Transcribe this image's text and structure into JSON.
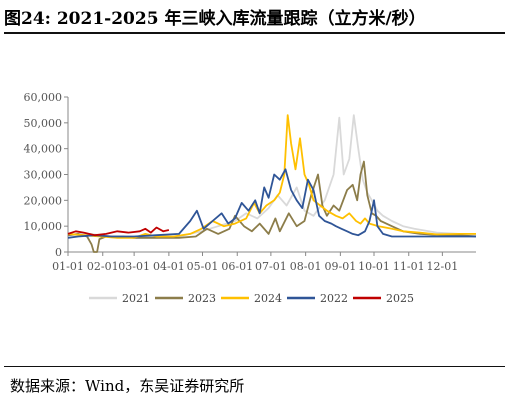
{
  "header": {
    "title": "图24:  2021-2025 年三峡入库流量跟踪（立方米/秒）"
  },
  "footer": {
    "source": "数据来源：Wind，东吴证券研究所"
  },
  "chart_data": {
    "type": "line",
    "title": "2021-2025 年三峡入库流量跟踪（立方米/秒）",
    "xlabel": "",
    "ylabel": "",
    "ylim": [
      0,
      60000
    ],
    "yticks": [
      0,
      10000,
      20000,
      30000,
      40000,
      50000,
      60000
    ],
    "ytick_labels": [
      "0",
      "10,000",
      "20,000",
      "30,000",
      "40,000",
      "50,000",
      "60,000"
    ],
    "xlim": [
      1,
      365
    ],
    "xticks": [
      1,
      32,
      60,
      91,
      121,
      152,
      182,
      213,
      244,
      274,
      305,
      335
    ],
    "xtick_labels": [
      "01-01",
      "02-01",
      "03-01",
      "04-01",
      "05-01",
      "06-01",
      "07-01",
      "08-01",
      "09-01",
      "10-01",
      "11-01",
      "12-01"
    ],
    "grid": false,
    "legend_position": "bottom",
    "series": [
      {
        "name": "2021",
        "color": "#d9d9d9",
        "points": [
          [
            1,
            6500
          ],
          [
            20,
            7000
          ],
          [
            40,
            6000
          ],
          [
            60,
            5500
          ],
          [
            80,
            5500
          ],
          [
            100,
            6000
          ],
          [
            120,
            8000
          ],
          [
            135,
            10000
          ],
          [
            150,
            12000
          ],
          [
            160,
            15000
          ],
          [
            170,
            13000
          ],
          [
            180,
            17000
          ],
          [
            188,
            22000
          ],
          [
            196,
            18000
          ],
          [
            205,
            25000
          ],
          [
            212,
            16000
          ],
          [
            220,
            14000
          ],
          [
            230,
            20000
          ],
          [
            238,
            30000
          ],
          [
            243,
            52000
          ],
          [
            247,
            30000
          ],
          [
            252,
            36000
          ],
          [
            256,
            53000
          ],
          [
            260,
            40000
          ],
          [
            264,
            28000
          ],
          [
            268,
            23000
          ],
          [
            272,
            20000
          ],
          [
            277,
            16000
          ],
          [
            282,
            14000
          ],
          [
            290,
            12000
          ],
          [
            300,
            10000
          ],
          [
            310,
            9000
          ],
          [
            330,
            7500
          ],
          [
            350,
            7000
          ],
          [
            365,
            6500
          ]
        ]
      },
      {
        "name": "2023",
        "color": "#8c7d4a",
        "points": [
          [
            1,
            6500
          ],
          [
            10,
            7000
          ],
          [
            18,
            6000
          ],
          [
            22,
            3000
          ],
          [
            24,
            0
          ],
          [
            27,
            0
          ],
          [
            29,
            5000
          ],
          [
            35,
            6000
          ],
          [
            50,
            6000
          ],
          [
            60,
            5500
          ],
          [
            80,
            5500
          ],
          [
            100,
            5500
          ],
          [
            115,
            6000
          ],
          [
            125,
            9000
          ],
          [
            135,
            7000
          ],
          [
            145,
            9000
          ],
          [
            150,
            14000
          ],
          [
            158,
            10000
          ],
          [
            165,
            8000
          ],
          [
            172,
            11000
          ],
          [
            180,
            7000
          ],
          [
            186,
            13000
          ],
          [
            190,
            8000
          ],
          [
            198,
            15000
          ],
          [
            205,
            10000
          ],
          [
            212,
            12000
          ],
          [
            218,
            22000
          ],
          [
            224,
            30000
          ],
          [
            228,
            18000
          ],
          [
            232,
            14000
          ],
          [
            238,
            18000
          ],
          [
            243,
            16000
          ],
          [
            250,
            24000
          ],
          [
            255,
            26000
          ],
          [
            259,
            20000
          ],
          [
            262,
            30000
          ],
          [
            265,
            35000
          ],
          [
            268,
            22000
          ],
          [
            272,
            15000
          ],
          [
            276,
            14000
          ],
          [
            280,
            12000
          ],
          [
            290,
            10000
          ],
          [
            300,
            8000
          ],
          [
            315,
            7000
          ],
          [
            335,
            6500
          ],
          [
            350,
            6500
          ],
          [
            365,
            6000
          ]
        ]
      },
      {
        "name": "2024",
        "color": "#ffc000",
        "points": [
          [
            1,
            7000
          ],
          [
            15,
            6500
          ],
          [
            30,
            6000
          ],
          [
            45,
            5500
          ],
          [
            60,
            5500
          ],
          [
            70,
            7000
          ],
          [
            80,
            6000
          ],
          [
            95,
            6000
          ],
          [
            110,
            7000
          ],
          [
            120,
            9000
          ],
          [
            130,
            12000
          ],
          [
            140,
            10000
          ],
          [
            150,
            11000
          ],
          [
            160,
            13000
          ],
          [
            167,
            19000
          ],
          [
            172,
            15000
          ],
          [
            178,
            18000
          ],
          [
            185,
            20000
          ],
          [
            190,
            23000
          ],
          [
            194,
            30000
          ],
          [
            197,
            53000
          ],
          [
            200,
            42000
          ],
          [
            204,
            32000
          ],
          [
            208,
            44000
          ],
          [
            212,
            30000
          ],
          [
            216,
            26000
          ],
          [
            220,
            20000
          ],
          [
            226,
            18000
          ],
          [
            232,
            16000
          ],
          [
            240,
            14000
          ],
          [
            246,
            13000
          ],
          [
            252,
            15000
          ],
          [
            258,
            12000
          ],
          [
            262,
            11000
          ],
          [
            266,
            13000
          ],
          [
            270,
            11000
          ],
          [
            278,
            10000
          ],
          [
            290,
            9000
          ],
          [
            300,
            8000
          ],
          [
            315,
            7500
          ],
          [
            330,
            6800
          ],
          [
            350,
            7000
          ],
          [
            365,
            7000
          ]
        ]
      },
      {
        "name": "2022",
        "color": "#2f5597",
        "points": [
          [
            1,
            5500
          ],
          [
            10,
            6000
          ],
          [
            25,
            6500
          ],
          [
            40,
            6000
          ],
          [
            60,
            6000
          ],
          [
            80,
            6500
          ],
          [
            100,
            7000
          ],
          [
            110,
            12000
          ],
          [
            116,
            16000
          ],
          [
            122,
            9000
          ],
          [
            130,
            12000
          ],
          [
            138,
            15000
          ],
          [
            144,
            11000
          ],
          [
            150,
            13000
          ],
          [
            156,
            19000
          ],
          [
            162,
            16000
          ],
          [
            168,
            20000
          ],
          [
            172,
            15000
          ],
          [
            176,
            25000
          ],
          [
            180,
            21000
          ],
          [
            185,
            30000
          ],
          [
            190,
            28000
          ],
          [
            195,
            32000
          ],
          [
            200,
            24000
          ],
          [
            205,
            20000
          ],
          [
            210,
            17000
          ],
          [
            215,
            28000
          ],
          [
            220,
            24000
          ],
          [
            225,
            14000
          ],
          [
            230,
            12000
          ],
          [
            236,
            11000
          ],
          [
            240,
            10000
          ],
          [
            245,
            9000
          ],
          [
            250,
            8000
          ],
          [
            255,
            7000
          ],
          [
            260,
            6500
          ],
          [
            266,
            8000
          ],
          [
            270,
            12000
          ],
          [
            274,
            20000
          ],
          [
            277,
            10000
          ],
          [
            282,
            7000
          ],
          [
            290,
            6000
          ],
          [
            305,
            6000
          ],
          [
            330,
            6000
          ],
          [
            350,
            6000
          ],
          [
            365,
            6000
          ]
        ]
      },
      {
        "name": "2025",
        "color": "#c00000",
        "points": [
          [
            1,
            7000
          ],
          [
            8,
            8000
          ],
          [
            15,
            7500
          ],
          [
            25,
            6500
          ],
          [
            35,
            7000
          ],
          [
            45,
            8000
          ],
          [
            55,
            7500
          ],
          [
            65,
            8000
          ],
          [
            70,
            9000
          ],
          [
            75,
            7500
          ],
          [
            80,
            9500
          ],
          [
            86,
            8000
          ],
          [
            91,
            8500
          ]
        ]
      }
    ]
  }
}
